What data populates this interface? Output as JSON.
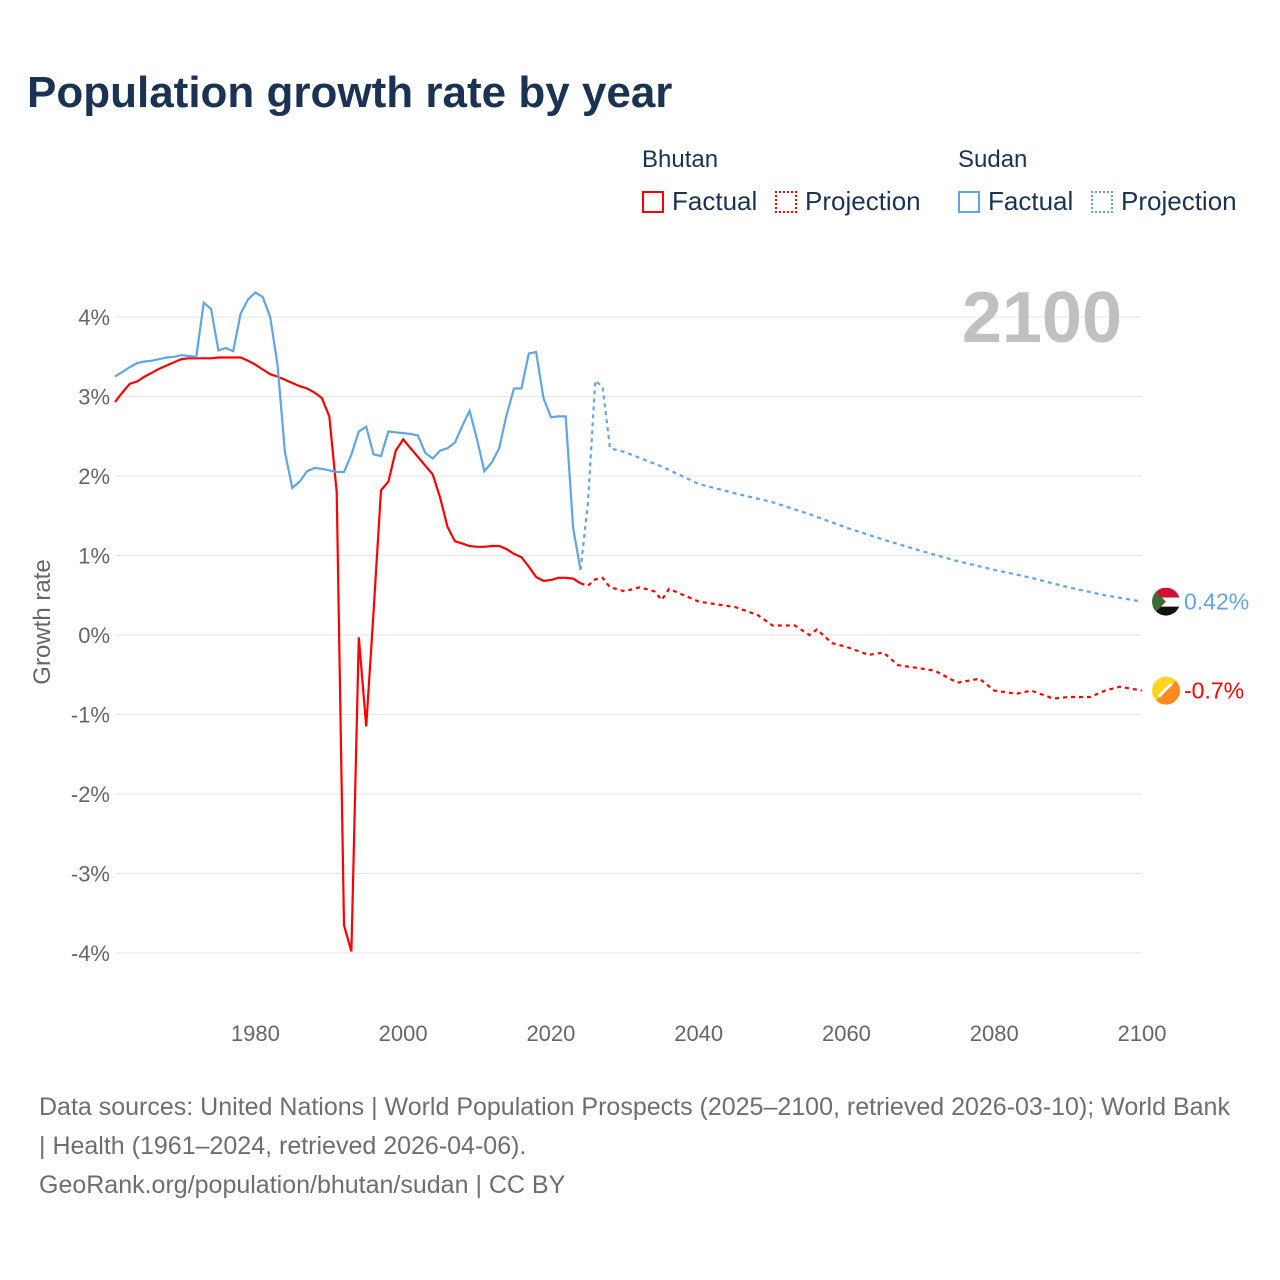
{
  "chart_data": {
    "type": "line",
    "title": "Population growth rate by year",
    "ylabel": "Growth rate",
    "xlabel": "",
    "ylim": [
      -4.6,
      4.6
    ],
    "xlim": [
      1961,
      2100
    ],
    "yticks": [
      4,
      3,
      2,
      1,
      0,
      -1,
      -2,
      -3,
      -4
    ],
    "ytick_labels": [
      "4%",
      "3%",
      "2%",
      "1%",
      "0%",
      "-1%",
      "-2%",
      "-3%",
      "-4%"
    ],
    "xticks": [
      1980,
      2000,
      2020,
      2040,
      2060,
      2080,
      2100
    ],
    "xtick_labels": [
      "1980",
      "2000",
      "2020",
      "2040",
      "2060",
      "2080",
      "2100"
    ],
    "year_label": "2100",
    "grid": true,
    "legend_groups": [
      {
        "name": "Bhutan",
        "factual": "Factual",
        "projection": "Projection"
      },
      {
        "name": "Sudan",
        "factual": "Factual",
        "projection": "Projection"
      }
    ],
    "series": [
      {
        "name": "Bhutan",
        "color": "#ff0000",
        "end_label": "-0.7%",
        "factual": {
          "x": [
            1961,
            1962,
            1963,
            1964,
            1965,
            1966,
            1967,
            1968,
            1969,
            1970,
            1971,
            1972,
            1973,
            1974,
            1975,
            1976,
            1977,
            1978,
            1979,
            1980,
            1981,
            1982,
            1983,
            1984,
            1985,
            1986,
            1987,
            1988,
            1989,
            1990,
            1991,
            1992,
            1993,
            1994,
            1995,
            1996,
            1997,
            1998,
            1999,
            2000,
            2001,
            2002,
            2003,
            2004,
            2005,
            2006,
            2007,
            2008,
            2009,
            2010,
            2011,
            2012,
            2013,
            2014,
            2015,
            2016,
            2017,
            2018,
            2019,
            2020,
            2021,
            2022,
            2023,
            2024
          ],
          "y": [
            2.93,
            3.05,
            3.16,
            3.19,
            3.25,
            3.3,
            3.35,
            3.39,
            3.43,
            3.47,
            3.48,
            3.48,
            3.48,
            3.48,
            3.49,
            3.49,
            3.49,
            3.49,
            3.45,
            3.4,
            3.34,
            3.28,
            3.25,
            3.21,
            3.17,
            3.13,
            3.1,
            3.05,
            2.98,
            2.75,
            1.8,
            -3.65,
            -3.98,
            -0.03,
            -1.15,
            0.3,
            1.82,
            1.93,
            2.32,
            2.46,
            2.35,
            2.24,
            2.13,
            2.02,
            1.73,
            1.36,
            1.18,
            1.15,
            1.12,
            1.11,
            1.11,
            1.12,
            1.12,
            1.08,
            1.02,
            0.98,
            0.86,
            0.73,
            0.68,
            0.69,
            0.72,
            0.72,
            0.71,
            0.65
          ]
        },
        "projection": {
          "x": [
            2024,
            2025,
            2026,
            2027,
            2028,
            2030,
            2032,
            2034,
            2035,
            2036,
            2040,
            2045,
            2048,
            2050,
            2053,
            2055,
            2056,
            2058,
            2060,
            2063,
            2065,
            2067,
            2070,
            2072,
            2075,
            2078,
            2080,
            2083,
            2085,
            2088,
            2090,
            2093,
            2095,
            2097,
            2100
          ],
          "y": [
            0.65,
            0.62,
            0.7,
            0.72,
            0.6,
            0.55,
            0.6,
            0.55,
            0.44,
            0.58,
            0.42,
            0.35,
            0.25,
            0.12,
            0.12,
            0.0,
            0.07,
            -0.1,
            -0.15,
            -0.25,
            -0.22,
            -0.38,
            -0.42,
            -0.45,
            -0.6,
            -0.55,
            -0.7,
            -0.74,
            -0.7,
            -0.8,
            -0.78,
            -0.78,
            -0.7,
            -0.65,
            -0.7
          ]
        }
      },
      {
        "name": "Sudan",
        "color": "#5fa6e8",
        "end_label": "0.42%",
        "factual": {
          "x": [
            1961,
            1962,
            1963,
            1964,
            1965,
            1966,
            1967,
            1968,
            1969,
            1970,
            1971,
            1972,
            1973,
            1974,
            1975,
            1976,
            1977,
            1978,
            1979,
            1980,
            1981,
            1982,
            1983,
            1984,
            1985,
            1986,
            1987,
            1988,
            1989,
            1990,
            1991,
            1992,
            1993,
            1994,
            1995,
            1996,
            1997,
            1998,
            1999,
            2000,
            2001,
            2002,
            2003,
            2004,
            2005,
            2006,
            2007,
            2008,
            2009,
            2010,
            2011,
            2012,
            2013,
            2014,
            2015,
            2016,
            2017,
            2018,
            2019,
            2020,
            2021,
            2022,
            2023,
            2024
          ],
          "y": [
            3.25,
            3.31,
            3.37,
            3.42,
            3.44,
            3.45,
            3.47,
            3.49,
            3.5,
            3.52,
            3.51,
            3.5,
            4.18,
            4.1,
            3.58,
            3.61,
            3.57,
            4.04,
            4.22,
            4.31,
            4.25,
            4.0,
            3.4,
            2.3,
            1.85,
            1.93,
            2.06,
            2.1,
            2.09,
            2.07,
            2.05,
            2.05,
            2.27,
            2.56,
            2.62,
            2.27,
            2.25,
            2.56,
            2.55,
            2.54,
            2.53,
            2.51,
            2.29,
            2.22,
            2.32,
            2.35,
            2.42,
            2.63,
            2.82,
            2.46,
            2.06,
            2.17,
            2.35,
            2.77,
            3.1,
            3.1,
            3.54,
            3.56,
            2.98,
            2.74,
            2.75,
            2.75,
            1.35,
            0.82
          ]
        },
        "projection": {
          "x": [
            2024,
            2025,
            2026,
            2027,
            2028,
            2030,
            2035,
            2040,
            2045,
            2050,
            2055,
            2060,
            2065,
            2070,
            2075,
            2080,
            2085,
            2090,
            2095,
            2100
          ],
          "y": [
            0.82,
            1.65,
            3.2,
            3.12,
            2.35,
            2.3,
            2.12,
            1.9,
            1.78,
            1.67,
            1.52,
            1.35,
            1.2,
            1.06,
            0.93,
            0.82,
            0.72,
            0.6,
            0.5,
            0.42
          ]
        }
      }
    ]
  },
  "footer": {
    "sources": "Data sources: United Nations | World Population Prospects (2025–2100, retrieved 2026-03-10); World Bank | Health (1961–2024, retrieved 2026-04-06).",
    "link": "GeoRank.org/population/bhutan/sudan | CC BY"
  }
}
